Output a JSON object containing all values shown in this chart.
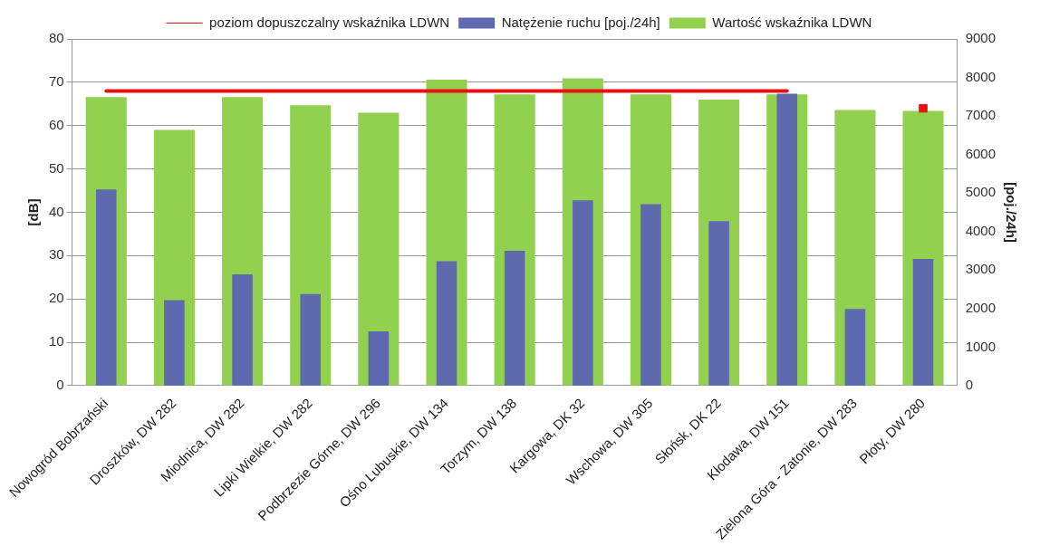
{
  "chart_data": {
    "type": "bar",
    "ylabel": "[dB]",
    "y2label": "[poj./24h]",
    "categories": [
      "Nowogród Bobrzański",
      "Droszków, DW 282",
      "Miodnica, DW 282",
      "Lipki Wielkie, DW 282",
      "Podbrzezie Górne, DW 296",
      "Ośno Lubuskie, DW 134",
      "Torzym, DW 138",
      "Kargowa, DK 32",
      "Wschowa, DW 305",
      "Słońsk, DK 22",
      "Kłodawa, DW 151",
      "Zielona Góra - Zatonie, DW 283",
      "Płoty, DW 280"
    ],
    "series": [
      {
        "name": "Wartość wskaźnika LDWN",
        "color": "#92d050",
        "values": [
          66.6,
          59.0,
          66.6,
          64.7,
          63.0,
          70.6,
          67.2,
          70.9,
          67.2,
          66.0,
          67.2,
          63.6,
          63.4
        ]
      },
      {
        "name": "Natężenie ruchu [poj./24h]",
        "color": "#5e6aad",
        "axis": "y2",
        "values": [
          5090,
          2220,
          2890,
          2380,
          1410,
          3230,
          3500,
          4810,
          4710,
          4270,
          7580,
          1990,
          3290
        ]
      },
      {
        "name": "poziom dopuszczalny wskaźnika LDWN",
        "color": "#e81010",
        "type": "line",
        "values": [
          68,
          68,
          68,
          68,
          68,
          68,
          68,
          68,
          68,
          68,
          68,
          null,
          64
        ]
      }
    ],
    "ylim": [
      0,
      80
    ],
    "yticks": [
      0,
      10,
      20,
      30,
      40,
      50,
      60,
      70,
      80
    ],
    "y2lim": [
      0,
      9000
    ],
    "y2ticks": [
      0,
      1000,
      2000,
      3000,
      4000,
      5000,
      6000,
      7000,
      8000,
      9000
    ],
    "grid": "y",
    "legend": "top"
  }
}
